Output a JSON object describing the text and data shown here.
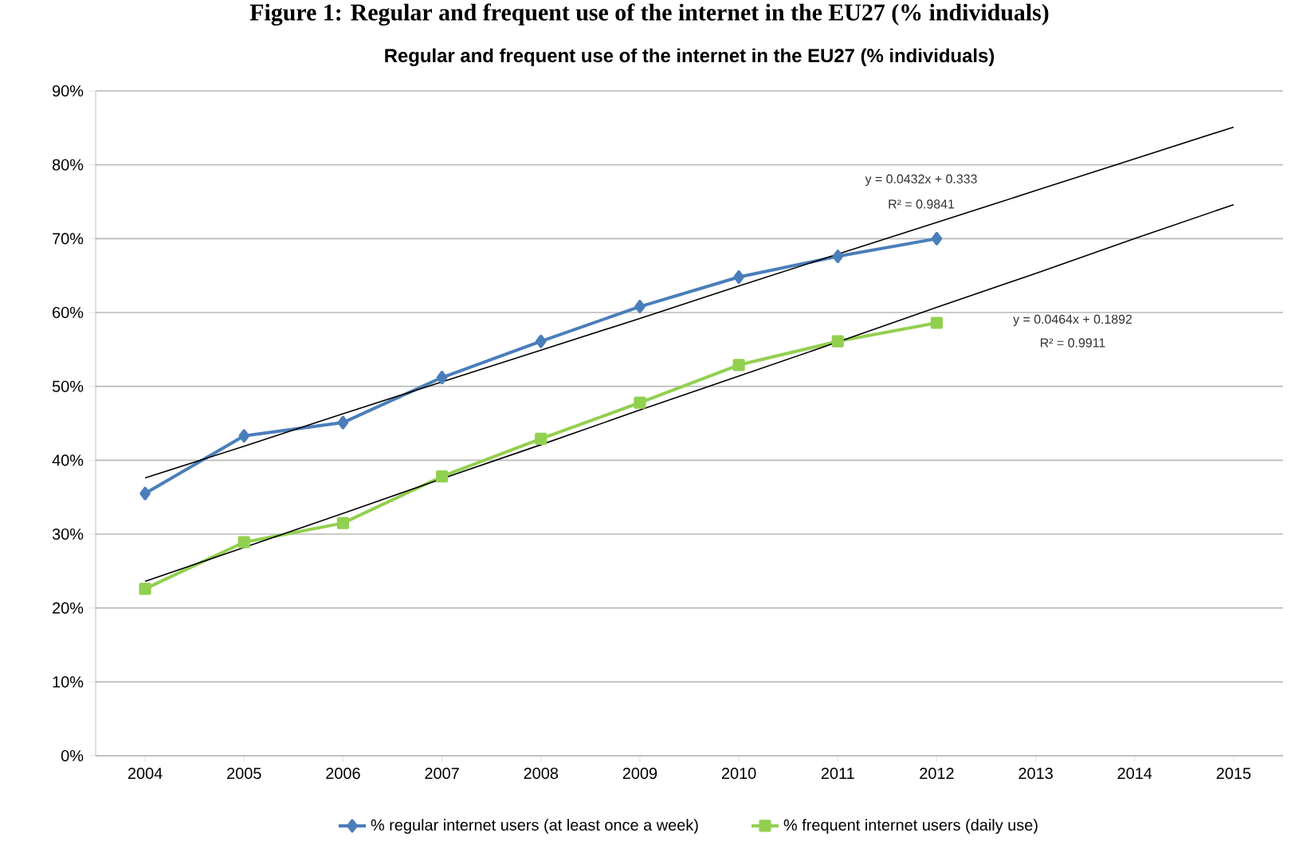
{
  "chart_data": {
    "type": "line",
    "title": "Regular and frequent use of the internet in the EU27 (% individuals)",
    "categories": [
      "2004",
      "2005",
      "2006",
      "2007",
      "2008",
      "2009",
      "2010",
      "2011",
      "2012",
      "2013",
      "2014",
      "2015"
    ],
    "series": [
      {
        "name": "% regular internet users (at least once a week)",
        "color": "#4a7ebb",
        "marker": "diamond",
        "values": [
          35.5,
          43.3,
          45.1,
          51.2,
          56.1,
          60.8,
          64.8,
          67.6,
          70.0,
          null,
          null,
          null
        ]
      },
      {
        "name": "% frequent internet users (daily use)",
        "color": "#92d050",
        "marker": "square",
        "values": [
          22.6,
          28.9,
          31.5,
          37.8,
          42.9,
          47.8,
          52.9,
          56.1,
          58.6,
          null,
          null,
          null
        ]
      },
      {
        "type": "line",
        "color": "#000000",
        "marker": "none",
        "values": [
          37.6,
          41.9,
          46.3,
          50.6,
          54.9,
          59.2,
          63.6,
          67.9,
          72.2,
          76.5,
          80.8,
          85.1
        ]
      },
      {
        "type": "line",
        "color": "#000000",
        "marker": "none",
        "values": [
          23.6,
          28.2,
          32.8,
          37.5,
          42.1,
          46.8,
          51.4,
          56.0,
          60.7,
          65.3,
          70.0,
          74.6
        ]
      }
    ],
    "ylim": [
      0,
      90
    ],
    "yticks": [
      {
        "value": 0,
        "label": "0%"
      },
      {
        "value": 10,
        "label": "10%"
      },
      {
        "value": 20,
        "label": "20%"
      },
      {
        "value": 30,
        "label": "30%"
      },
      {
        "value": 40,
        "label": "40%"
      },
      {
        "value": 50,
        "label": "50%"
      },
      {
        "value": 60,
        "label": "60%"
      },
      {
        "value": 70,
        "label": "70%"
      },
      {
        "value": 80,
        "label": "80%"
      },
      {
        "value": 90,
        "label": "90%"
      }
    ],
    "grid": "y",
    "legend": "bottom",
    "annotations": [
      "Figure 1: Regular and frequent use of the internet in the EU27 (% individuals)",
      "y = 0.0432x + 0.333",
      "R² = 0.9841",
      "y = 0.0464x + 0.1892",
      "R² = 0.9911"
    ]
  }
}
